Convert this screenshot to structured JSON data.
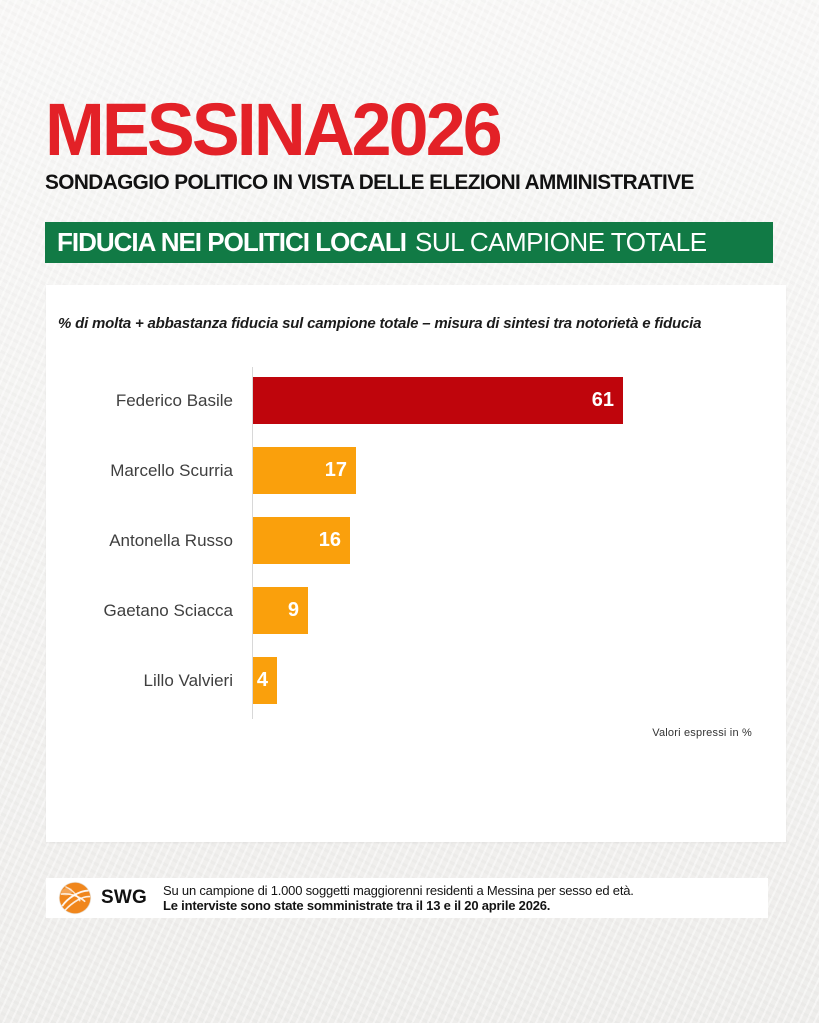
{
  "header": {
    "title": "MESSINA2026",
    "subtitle": "SONDAGGIO POLITICO IN VISTA DELLE ELEZIONI AMMINISTRATIVE"
  },
  "banner": {
    "title_bold": "FIDUCIA NEI POLITICI LOCALI",
    "title_regular": "SUL CAMPIONE TOTALE"
  },
  "chart_card": {
    "note": "% di molta + abbastanza fiducia sul campione totale – misura di sintesi tra notorietà e fiducia",
    "footnote": "Valori espressi in %"
  },
  "chart_data": {
    "type": "bar",
    "orientation": "horizontal",
    "title": "FIDUCIA NEI POLITICI LOCALI SUL CAMPIONE TOTALE",
    "subtitle": "% di molta + abbastanza fiducia sul campione totale – misura di sintesi tra notorietà e fiducia",
    "categories": [
      "Federico Basile",
      "Marcello Scurria",
      "Antonella Russo",
      "Gaetano Sciacca",
      "Lillo Valvieri"
    ],
    "values": [
      61,
      17,
      16,
      9,
      4
    ],
    "bar_colors": [
      "#bf050c",
      "#faa00c",
      "#faa00c",
      "#faa00c",
      "#faa00c"
    ],
    "xlabel": "",
    "ylabel": "",
    "xlim": [
      0,
      61
    ],
    "grid": false,
    "legend": false,
    "value_labels": true,
    "annotation": "Valori espressi in %"
  },
  "footer": {
    "logo_text": "SWG",
    "line1": "Su un campione di 1.000 soggetti maggiorenni residenti a Messina per sesso ed età.",
    "line2": "Le interviste sono state somministrate tra il 13 e il 20 aprile 2026."
  },
  "colors": {
    "title_red": "#e32127",
    "bar_red": "#bf050c",
    "bar_orange": "#faa00c",
    "banner_green": "#117a45",
    "background": "#f1f0ee",
    "logo_orange": "#f0861c"
  }
}
